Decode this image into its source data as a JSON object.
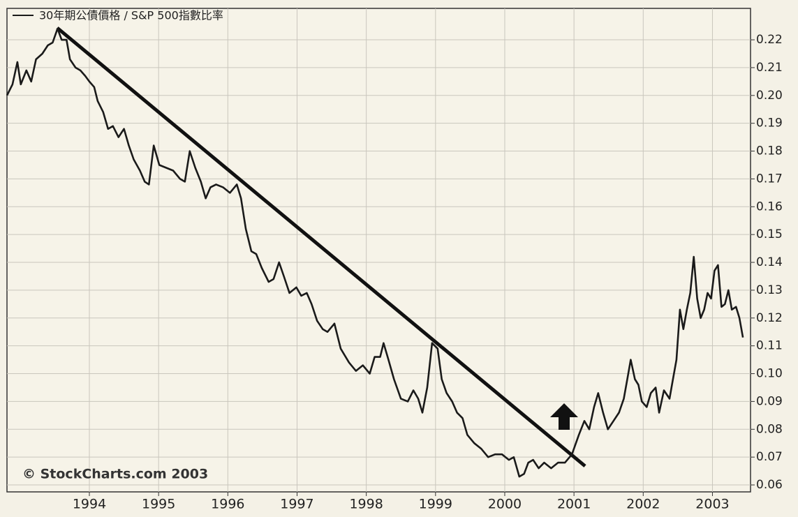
{
  "chart_data": {
    "type": "line",
    "series": [
      {
        "name": "30年期公債價格 / S&P 500指數比率",
        "color": "#1a1a1a",
        "x": [
          1992.81,
          1992.89,
          1992.96,
          1993.01,
          1993.09,
          1993.16,
          1993.23,
          1993.32,
          1993.4,
          1993.47,
          1993.54,
          1993.6,
          1993.67,
          1993.72,
          1993.8,
          1993.87,
          1993.94,
          1994.0,
          1994.07,
          1994.12,
          1994.2,
          1994.27,
          1994.34,
          1994.42,
          1994.5,
          1994.57,
          1994.64,
          1994.73,
          1994.8,
          1994.86,
          1994.93,
          1995.01,
          1995.11,
          1995.21,
          1995.31,
          1995.38,
          1995.45,
          1995.53,
          1995.61,
          1995.68,
          1995.75,
          1995.83,
          1995.93,
          1996.03,
          1996.13,
          1996.19,
          1996.26,
          1996.34,
          1996.41,
          1996.49,
          1996.59,
          1996.66,
          1996.74,
          1996.81,
          1996.89,
          1996.99,
          1997.06,
          1997.14,
          1997.21,
          1997.29,
          1997.37,
          1997.44,
          1997.54,
          1997.63,
          1997.75,
          1997.85,
          1997.95,
          1998.05,
          1998.12,
          1998.2,
          1998.25,
          1998.32,
          1998.4,
          1998.5,
          1998.6,
          1998.68,
          1998.75,
          1998.81,
          1998.88,
          1998.95,
          1999.03,
          1999.09,
          1999.16,
          1999.24,
          1999.31,
          1999.39,
          1999.46,
          1999.56,
          1999.66,
          1999.76,
          1999.86,
          1999.96,
          2000.06,
          2000.13,
          2000.21,
          2000.28,
          2000.34,
          2000.41,
          2000.49,
          2000.57,
          2000.67,
          2000.77,
          2000.87,
          2000.97,
          2001.07,
          2001.15,
          2001.22,
          2001.29,
          2001.35,
          2001.42,
          2001.49,
          2001.57,
          2001.65,
          2001.72,
          2001.77,
          2001.82,
          2001.88,
          2001.93,
          2001.98,
          2002.05,
          2002.11,
          2002.18,
          2002.23,
          2002.3,
          2002.38,
          2002.43,
          2002.48,
          2002.53,
          2002.58,
          2002.63,
          2002.68,
          2002.73,
          2002.78,
          2002.83,
          2002.88,
          2002.93,
          2002.98,
          2003.03,
          2003.08,
          2003.13,
          2003.18,
          2003.23,
          2003.28,
          2003.34,
          2003.39,
          2003.44
        ],
        "values": [
          0.2,
          0.204,
          0.212,
          0.204,
          0.209,
          0.205,
          0.213,
          0.215,
          0.218,
          0.219,
          0.224,
          0.22,
          0.22,
          0.213,
          0.21,
          0.209,
          0.207,
          0.205,
          0.203,
          0.198,
          0.194,
          0.188,
          0.189,
          0.185,
          0.188,
          0.182,
          0.177,
          0.173,
          0.169,
          0.168,
          0.182,
          0.175,
          0.174,
          0.173,
          0.17,
          0.169,
          0.18,
          0.174,
          0.169,
          0.163,
          0.167,
          0.168,
          0.167,
          0.165,
          0.168,
          0.163,
          0.152,
          0.144,
          0.143,
          0.138,
          0.133,
          0.134,
          0.14,
          0.135,
          0.129,
          0.131,
          0.128,
          0.129,
          0.125,
          0.119,
          0.116,
          0.115,
          0.118,
          0.109,
          0.104,
          0.101,
          0.103,
          0.1,
          0.106,
          0.106,
          0.111,
          0.105,
          0.098,
          0.091,
          0.09,
          0.094,
          0.091,
          0.086,
          0.095,
          0.111,
          0.109,
          0.098,
          0.093,
          0.09,
          0.086,
          0.084,
          0.078,
          0.075,
          0.073,
          0.07,
          0.071,
          0.071,
          0.069,
          0.07,
          0.063,
          0.064,
          0.068,
          0.069,
          0.066,
          0.068,
          0.066,
          0.068,
          0.068,
          0.071,
          0.078,
          0.083,
          0.08,
          0.088,
          0.093,
          0.086,
          0.08,
          0.083,
          0.086,
          0.091,
          0.098,
          0.105,
          0.098,
          0.096,
          0.09,
          0.088,
          0.093,
          0.095,
          0.086,
          0.094,
          0.091,
          0.098,
          0.105,
          0.123,
          0.116,
          0.123,
          0.129,
          0.142,
          0.127,
          0.12,
          0.123,
          0.129,
          0.127,
          0.137,
          0.139,
          0.124,
          0.125,
          0.13,
          0.123,
          0.124,
          0.12,
          0.113
        ]
      }
    ],
    "xlim": [
      1992.81,
      2003.55
    ],
    "xticks": [
      1994,
      1995,
      1996,
      1997,
      1998,
      1999,
      2000,
      2001,
      2002,
      2003
    ],
    "ylim": [
      0.0575,
      0.2313
    ],
    "yticks": [
      0.06,
      0.07,
      0.08,
      0.09,
      {
        "value": 0.1,
        "label": "0.10"
      },
      0.11,
      0.12,
      0.13,
      0.14,
      0.15,
      0.16,
      0.17,
      0.18,
      0.19,
      {
        "value": 0.2,
        "label": "0.20"
      },
      0.21,
      0.22
    ],
    "grid": true,
    "annotation": "© StockCharts.com 2003"
  }
}
